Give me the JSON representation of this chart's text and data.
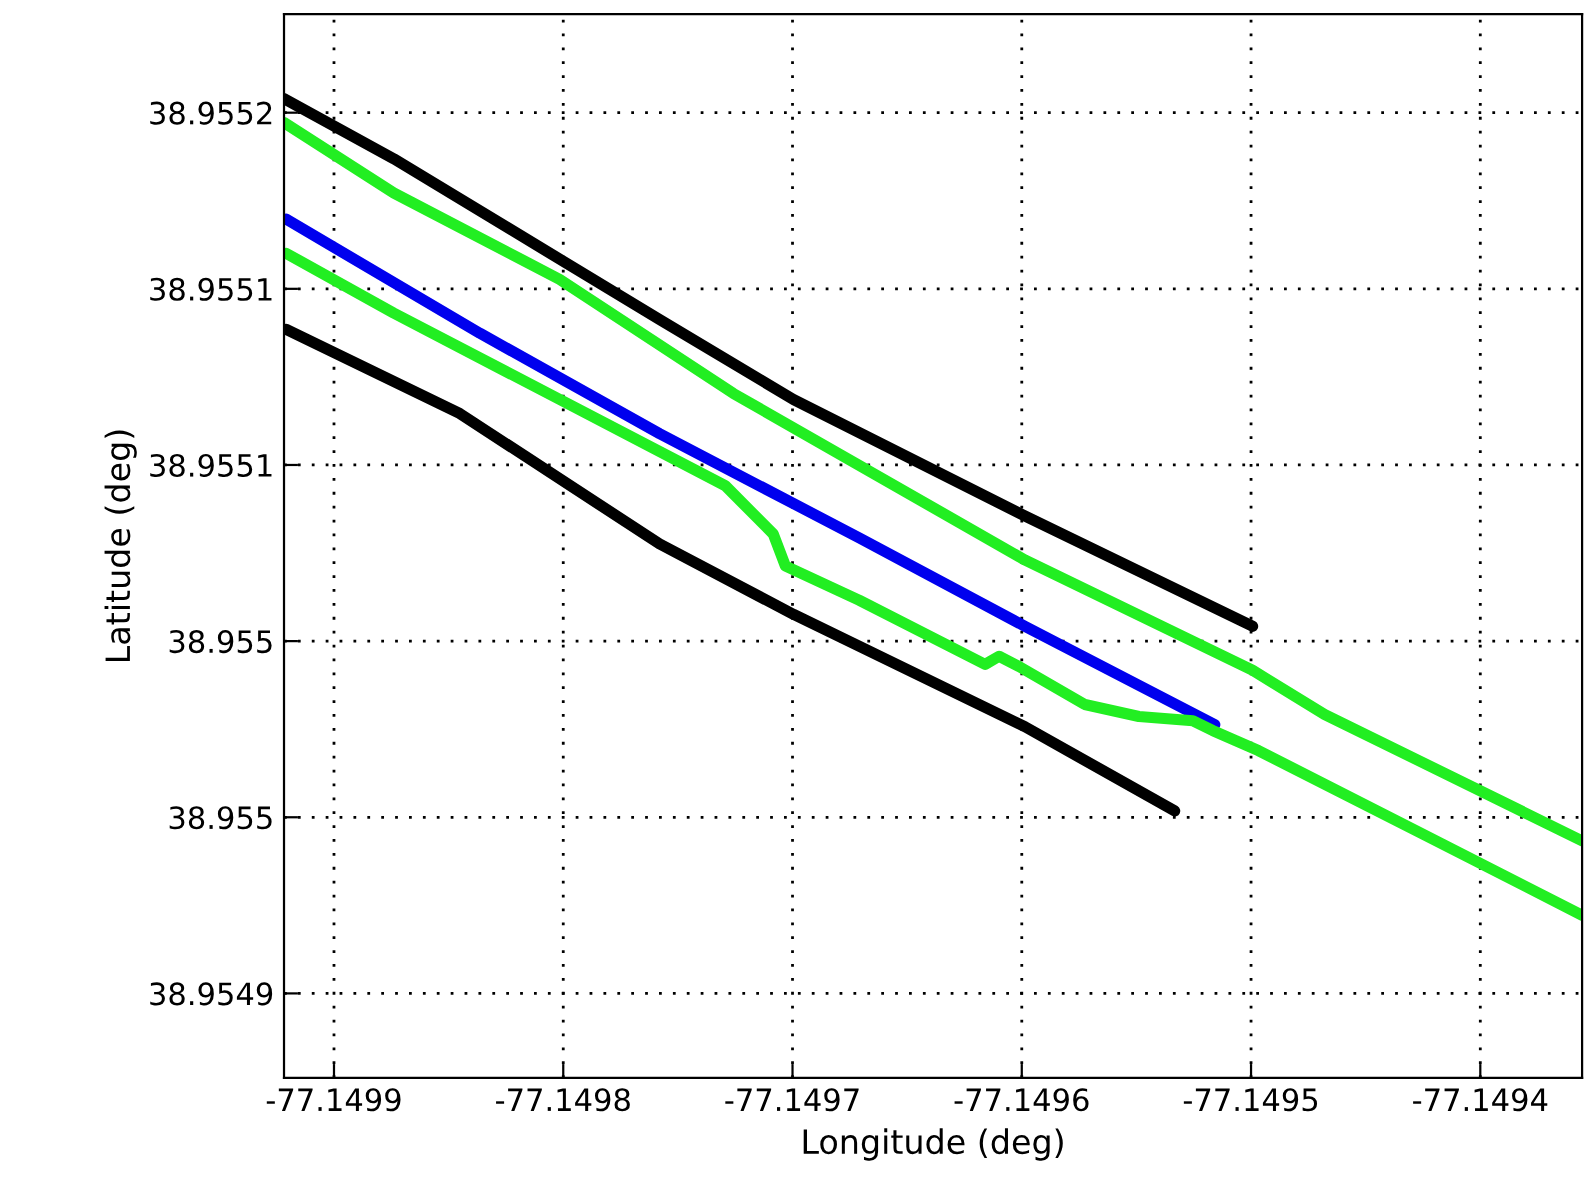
{
  "chart_data": {
    "type": "line",
    "xlabel": "Longitude (deg)",
    "ylabel": "Latitude (deg)",
    "xlim": [
      -77.1499218,
      -77.1493556
    ],
    "ylim": [
      38.954926,
      38.955228
    ],
    "xticks": [
      -77.1499,
      -77.1498,
      -77.1497,
      -77.1496,
      -77.1495,
      -77.1494
    ],
    "yticks": [
      {
        "value": 38.9552,
        "label": "38.9552"
      },
      {
        "value": 38.95515,
        "label": "38.9551"
      },
      {
        "value": 38.9551,
        "label": "38.9551"
      },
      {
        "value": 38.95505,
        "label": "38.955"
      },
      {
        "value": 38.955,
        "label": "38.955"
      },
      {
        "value": 38.95495,
        "label": "38.9549"
      }
    ],
    "grid": true,
    "line_style": "solid",
    "marker": "none",
    "series": [
      {
        "color": "#000000",
        "x": [
          -77.1499218,
          -77.1498739,
          -77.149758,
          -77.1496996,
          -77.1495986,
          -77.1494993
        ],
        "values": [
          38.955204,
          38.9551869,
          38.9551413,
          38.9551186,
          38.9550855,
          38.9550542
        ]
      },
      {
        "color": "#22ee22",
        "x": [
          -77.1499218,
          -77.1498739,
          -77.1498016,
          -77.1497258,
          -77.1495986,
          -77.1494993,
          -77.1494679,
          -77.1493556
        ],
        "values": [
          38.9551972,
          38.9551772,
          38.9551527,
          38.9551203,
          38.955073,
          38.9550417,
          38.9550292,
          38.9549933
        ]
      },
      {
        "color": "#0000ee",
        "x": [
          -77.1499209,
          -77.1498364,
          -77.149758,
          -77.1496709,
          -77.1495986,
          -77.1495158
        ],
        "values": [
          38.9551698,
          38.9551374,
          38.9551089,
          38.9550793,
          38.9550542,
          38.9550263
        ]
      },
      {
        "color": "#22ee22",
        "x": [
          -77.1499209,
          -77.1498739,
          -77.1498016,
          -77.1497293,
          -77.1497084,
          -77.1497031,
          -77.1496709,
          -77.149616,
          -77.1496099,
          -77.1496012,
          -77.1495725,
          -77.1495489,
          -77.1495254,
          -77.1495167,
          -77.1494967,
          -77.1494244,
          -77.1493556
        ],
        "values": [
          38.9551601,
          38.9551431,
          38.9551186,
          38.9550941,
          38.9550804,
          38.9550713,
          38.9550616,
          38.9550434,
          38.9550457,
          38.9550428,
          38.955032,
          38.9550286,
          38.9550274,
          38.9550246,
          38.9550189,
          38.954995,
          38.9549722
        ]
      },
      {
        "color": "#000000",
        "x": [
          -77.1499209,
          -77.1498451,
          -77.149758,
          -77.1496996,
          -77.1495986,
          -77.1495333
        ],
        "values": [
          38.9551385,
          38.9551146,
          38.9550776,
          38.9550576,
          38.9550257,
          38.9550018
        ]
      }
    ]
  }
}
